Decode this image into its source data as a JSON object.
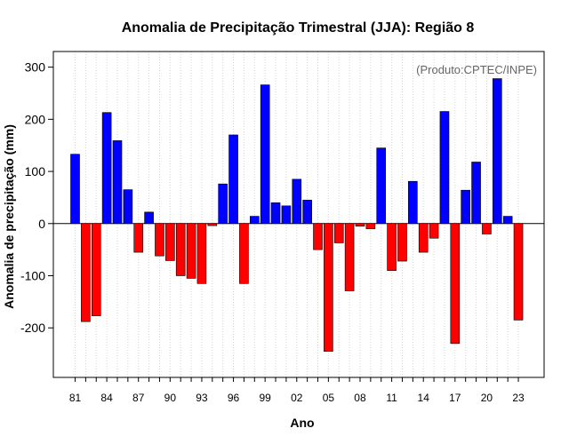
{
  "chart_data": {
    "type": "bar",
    "title": "Anomalia de Precipitação Trimestral (JJA): Região 8",
    "xlabel": "Ano",
    "ylabel": "Anomalia de precipitação (mm)",
    "annotation": "(Produto:CPTEC/INPE)",
    "ylim": [
      -295,
      330
    ],
    "yticks": [
      -200,
      -100,
      0,
      100,
      200,
      300
    ],
    "xtick_labels": [
      "81",
      "84",
      "87",
      "90",
      "93",
      "96",
      "99",
      "02",
      "05",
      "08",
      "11",
      "14",
      "17",
      "20",
      "23"
    ],
    "categories": [
      "1981",
      "1982",
      "1983",
      "1984",
      "1985",
      "1986",
      "1987",
      "1988",
      "1989",
      "1990",
      "1991",
      "1992",
      "1993",
      "1994",
      "1995",
      "1996",
      "1997",
      "1998",
      "1999",
      "2000",
      "2001",
      "2002",
      "2003",
      "2004",
      "2005",
      "2006",
      "2007",
      "2008",
      "2009",
      "2010",
      "2011",
      "2012",
      "2013",
      "2014",
      "2015",
      "2016",
      "2017",
      "2018",
      "2019",
      "2020",
      "2021",
      "2022",
      "2023"
    ],
    "values": [
      133,
      -188,
      -177,
      213,
      159,
      65,
      -55,
      22,
      -62,
      -71,
      -100,
      -105,
      -115,
      -4,
      76,
      170,
      -115,
      14,
      266,
      40,
      34,
      85,
      45,
      -50,
      -245,
      -37,
      -129,
      -5,
      -10,
      145,
      -90,
      -72,
      81,
      -55,
      -28,
      215,
      -230,
      64,
      118,
      -20,
      278,
      14,
      -185
    ],
    "colors": {
      "positive": "#0000ff",
      "negative": "#ff0000",
      "grid": "#d3d3d3"
    }
  }
}
